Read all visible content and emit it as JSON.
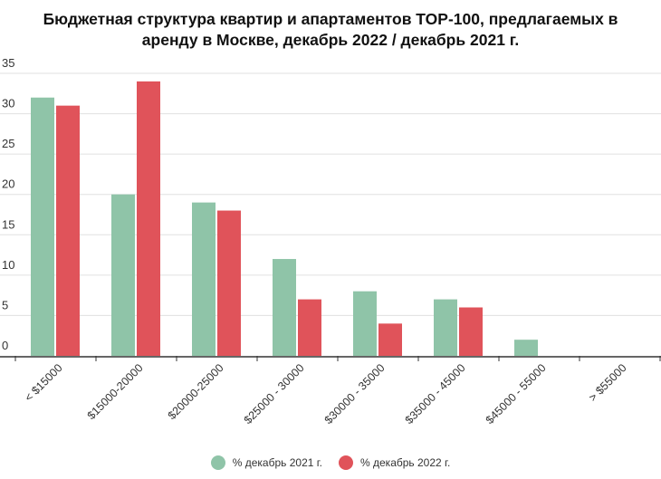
{
  "chart_data": {
    "type": "bar",
    "title_lines": [
      "Бюджетная структура квартир и апартаментов TOP-100, предлагаемых в",
      "аренду в Москве, декабрь 2022 / декабрь 2021 г."
    ],
    "categories": [
      "< $15000",
      "$15000-20000",
      "$20000-25000",
      "$25000 - 30000",
      "$30000 - 35000",
      "$35000 - 45000",
      "$45000 - 55000",
      "> $55000"
    ],
    "series": [
      {
        "name": "% декабрь 2021 г.",
        "color": "#8fc4a8",
        "values": [
          32,
          20,
          19,
          12,
          8,
          7,
          2,
          0
        ]
      },
      {
        "name": "% декабрь 2022 г.",
        "color": "#e0535a",
        "values": [
          31,
          34,
          18,
          7,
          4,
          6,
          0,
          0
        ]
      }
    ],
    "yticks": [
      "0",
      "5",
      "10",
      "15",
      "20",
      "25",
      "30",
      "35"
    ],
    "ylim": [
      0,
      35
    ],
    "grid": true,
    "legend_position": "bottom-center"
  }
}
